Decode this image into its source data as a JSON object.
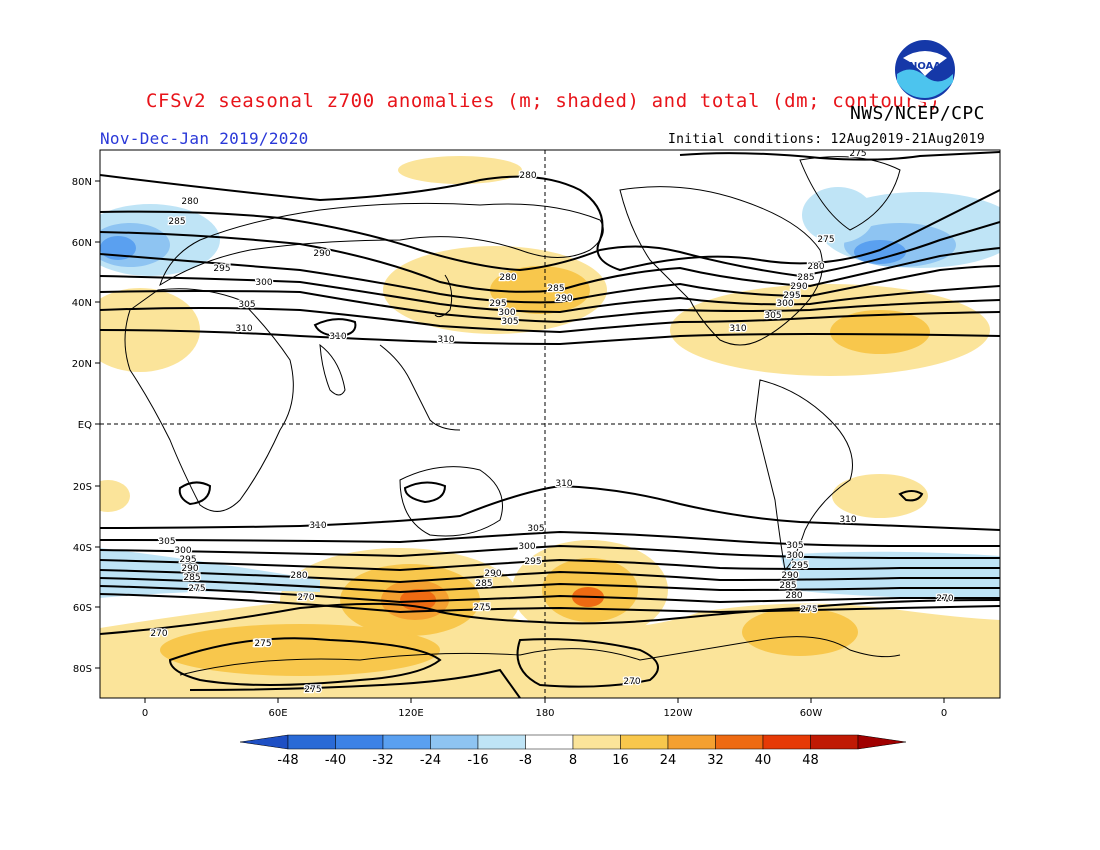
{
  "header": {
    "title": "CFSv2 seasonal z700 anomalies (m; shaded) and total (dm; contours)",
    "agency": "NWS/NCEP/CPC",
    "period": "Nov-Dec-Jan 2019/2020",
    "initial_conditions": "Initial conditions: 12Aug2019-21Aug2019",
    "logo_text": "NOAA"
  },
  "axes": {
    "lat_labels": [
      "80N",
      "60N",
      "40N",
      "20N",
      "EQ",
      "20S",
      "40S",
      "60S",
      "80S"
    ],
    "lon_labels": [
      "0",
      "60E",
      "120E",
      "180",
      "120W",
      "60W",
      "0"
    ]
  },
  "colorbar": {
    "labels": [
      "-48",
      "-40",
      "-32",
      "-24",
      "-16",
      "-8",
      "8",
      "16",
      "24",
      "32",
      "40",
      "48"
    ],
    "colors": [
      "#2a6ad6",
      "#3c82e6",
      "#5aa0f0",
      "#8ec4f2",
      "#bfe4f6",
      "#ffffff",
      "#fbe49a",
      "#f8c74c",
      "#f4a030",
      "#ee6a12",
      "#e63a06",
      "#c01a04"
    ],
    "low_end_color": "#1e4fc4",
    "high_end_color": "#a00000"
  },
  "contour_labels": [
    {
      "text": "275"
    },
    {
      "text": "280"
    },
    {
      "text": "280"
    },
    {
      "text": "285"
    },
    {
      "text": "290"
    },
    {
      "text": "295"
    },
    {
      "text": "300"
    },
    {
      "text": "305"
    },
    {
      "text": "310"
    },
    {
      "text": "310"
    },
    {
      "text": "280"
    },
    {
      "text": "285"
    },
    {
      "text": "290"
    },
    {
      "text": "295"
    },
    {
      "text": "300"
    },
    {
      "text": "305"
    },
    {
      "text": "310"
    },
    {
      "text": "275"
    },
    {
      "text": "280"
    },
    {
      "text": "285"
    },
    {
      "text": "290"
    },
    {
      "text": "295"
    },
    {
      "text": "300"
    },
    {
      "text": "305"
    },
    {
      "text": "310"
    },
    {
      "text": "310"
    },
    {
      "text": "310"
    },
    {
      "text": "310"
    },
    {
      "text": "305"
    },
    {
      "text": "300"
    },
    {
      "text": "295"
    },
    {
      "text": "290"
    },
    {
      "text": "285"
    },
    {
      "text": "275"
    },
    {
      "text": "280"
    },
    {
      "text": "270"
    },
    {
      "text": "270"
    },
    {
      "text": "275"
    },
    {
      "text": "275"
    },
    {
      "text": "305"
    },
    {
      "text": "300"
    },
    {
      "text": "295"
    },
    {
      "text": "290"
    },
    {
      "text": "285"
    },
    {
      "text": "275"
    },
    {
      "text": "305"
    },
    {
      "text": "300"
    },
    {
      "text": "295"
    },
    {
      "text": "290"
    },
    {
      "text": "285"
    },
    {
      "text": "280"
    },
    {
      "text": "275"
    },
    {
      "text": "270"
    },
    {
      "text": "270"
    },
    {
      "text": "275"
    }
  ]
}
